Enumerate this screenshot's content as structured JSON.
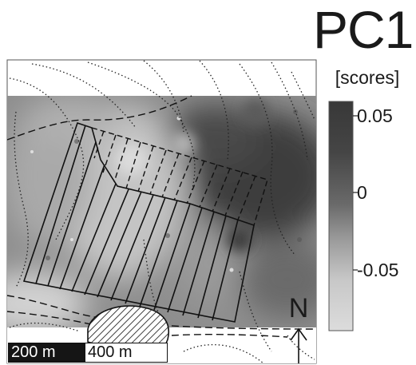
{
  "map": {
    "title": "PC1",
    "units": "[scores]",
    "colorbar": {
      "ticks": [
        "0.05",
        "0",
        "-0.05"
      ],
      "low_color": "#d6d6d6",
      "high_color": "#3a3a3a"
    },
    "scale_bar": {
      "left_label": "200 m",
      "right_label": "400 m"
    },
    "north_label": "N"
  }
}
